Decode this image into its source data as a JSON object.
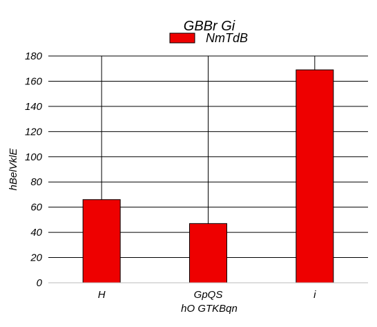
{
  "chart_data": {
    "type": "bar",
    "title": "GBBr Gi",
    "xlabel": "hO GTKBqn",
    "ylabel": "hBelVklE",
    "categories": [
      "H",
      "GpQS",
      "i"
    ],
    "series": [
      {
        "name": "NmTdB",
        "values": [
          66,
          47,
          169
        ],
        "color": "#ee0000"
      }
    ],
    "ylim": [
      0,
      180
    ],
    "yticks": [
      0,
      20,
      40,
      60,
      80,
      100,
      120,
      140,
      160,
      180
    ],
    "grid": true,
    "legend_position": "top-center"
  }
}
